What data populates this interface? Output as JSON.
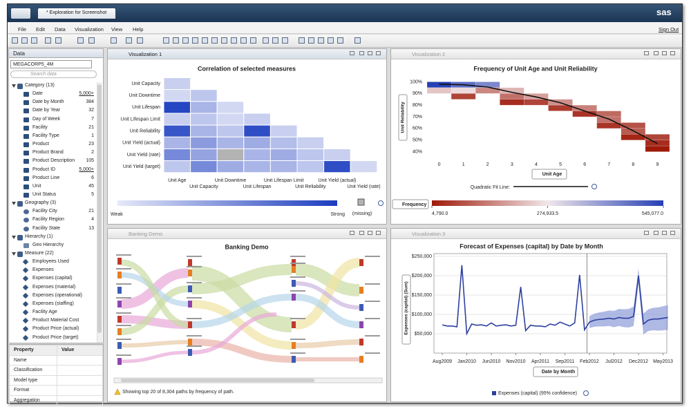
{
  "app": {
    "tab": "* Exploration for Screenshot",
    "logo": "sas",
    "menu": [
      "File",
      "Edit",
      "Data",
      "Visualization",
      "View",
      "Help"
    ],
    "sign_out": "Sign Out"
  },
  "data_panel": {
    "title": "Data",
    "source": "MEGACORP5_4M",
    "search": "Search data",
    "groups": [
      {
        "label": "Category (13)",
        "items": [
          {
            "label": "Date",
            "count": "5,000+"
          },
          {
            "label": "Date by Month",
            "count": "384"
          },
          {
            "label": "Date by Year",
            "count": "32"
          },
          {
            "label": "Day of Week",
            "count": "7"
          },
          {
            "label": "Facility",
            "count": "21"
          },
          {
            "label": "Facility Type",
            "count": "1"
          },
          {
            "label": "Product",
            "count": "23"
          },
          {
            "label": "Product Brand",
            "count": "2"
          },
          {
            "label": "Product Description",
            "count": "105"
          },
          {
            "label": "Product ID",
            "count": "5,000+"
          },
          {
            "label": "Product Line",
            "count": "6"
          },
          {
            "label": "Unit",
            "count": "45"
          },
          {
            "label": "Unit Status",
            "count": "5"
          }
        ]
      },
      {
        "label": "Geography (3)",
        "items": [
          {
            "label": "Facility City",
            "count": "21"
          },
          {
            "label": "Facility Region",
            "count": "4"
          },
          {
            "label": "Facility State",
            "count": "13"
          }
        ]
      },
      {
        "label": "Hierarchy (1)",
        "items": [
          {
            "label": "Geo Hierarchy"
          }
        ]
      },
      {
        "label": "Measure (22)",
        "items": [
          {
            "label": "Employees Used"
          },
          {
            "label": "Expenses"
          },
          {
            "label": "Expenses (capital)"
          },
          {
            "label": "Expenses (material)"
          },
          {
            "label": "Expenses (operational)"
          },
          {
            "label": "Expenses (staffing)"
          },
          {
            "label": "Facility Age"
          },
          {
            "label": "Product Material Cost"
          },
          {
            "label": "Product Price (actual)"
          },
          {
            "label": "Product Price (target)"
          }
        ]
      }
    ]
  },
  "properties": {
    "headers": [
      "Property",
      "Value"
    ],
    "rows": [
      "Name",
      "Classification",
      "Model type",
      "Format",
      "Aggregation"
    ]
  },
  "panels": [
    "Visualization 1",
    "Visualization 2",
    "Banking Demo",
    "Visualization 3"
  ],
  "chart_data": [
    {
      "type": "heatmap",
      "title": "Correlation of selected measures",
      "rows": [
        "Unit Capacity",
        "Unit Downtime",
        "Unit Lifespan",
        "Unit Lifespan Limit",
        "Unit Reliability",
        "Unit Yield (actual)",
        "Unit Yield (rate)",
        "Unit Yield (target)"
      ],
      "columns": [
        "Unit Age",
        "Unit Capacity",
        "Unit Downtime",
        "Unit Lifespan",
        "Unit Lifespan Limit",
        "Unit Reliability",
        "Unit Yield (actual)",
        "Unit Yield (rate)"
      ],
      "values": [
        [
          0.15
        ],
        [
          0.1,
          0.2
        ],
        [
          0.95,
          0.3,
          0.1
        ],
        [
          0.15,
          0.2,
          0.1,
          0.15
        ],
        [
          0.85,
          0.3,
          0.2,
          0.9,
          0.15
        ],
        [
          0.3,
          0.45,
          0.3,
          0.35,
          0.25,
          0.15
        ],
        [
          0.55,
          0.4,
          null,
          0.3,
          0.35,
          0.2,
          0.15
        ],
        [
          0.2,
          0.55,
          0.35,
          0.3,
          0.3,
          0.2,
          0.9,
          0.1
        ]
      ],
      "zlim": [
        0,
        1
      ],
      "legend": {
        "low": "Weak",
        "high": "Strong",
        "missing": "(missing)"
      },
      "color_low": "#e6e9f8",
      "color_high": "#1b3cbf",
      "color_missing": "#b3b3b3"
    },
    {
      "type": "binned_heatmap",
      "title": "Frequency of Unit Age and Unit Reliability",
      "x_label": "Unit Age",
      "y_label": "Unit Reliability",
      "xlim": [
        -0.5,
        9.5
      ],
      "xticks": [
        0,
        1,
        2,
        3,
        4,
        5,
        6,
        7,
        8,
        9
      ],
      "ylim": [
        35,
        105
      ],
      "yticks": [
        {
          "value": 40,
          "label": "40%"
        },
        {
          "value": 50,
          "label": "50%"
        },
        {
          "value": 60,
          "label": "60%"
        },
        {
          "value": 70,
          "label": "70%"
        },
        {
          "value": 80,
          "label": "80%"
        },
        {
          "value": 90,
          "label": "90%"
        },
        {
          "value": 100,
          "label": "100%"
        }
      ],
      "xbin": 1,
      "ybin": 5,
      "cells": {
        "x": [
          0,
          0,
          1,
          1,
          1,
          2,
          2,
          3,
          3,
          3,
          4,
          4,
          5,
          5,
          6,
          6,
          7,
          7,
          7,
          8,
          8,
          8,
          9,
          9,
          9
        ],
        "y": [
          95,
          90,
          95,
          90,
          85,
          95,
          90,
          90,
          85,
          80,
          85,
          80,
          80,
          75,
          75,
          70,
          70,
          65,
          60,
          60,
          55,
          50,
          50,
          45,
          40
        ],
        "values": [
          545077,
          230000,
          470000,
          260000,
          60000,
          430000,
          150000,
          210000,
          120000,
          30000,
          180000,
          60000,
          160000,
          50000,
          140000,
          40000,
          110000,
          120000,
          40000,
          80000,
          90000,
          20000,
          60000,
          30000,
          4790
        ]
      },
      "colorscale": {
        "name": "Frequency",
        "ticks": [
          {
            "value": 4790,
            "label": "4,790.0"
          },
          {
            "value": 274933.5,
            "label": "274,933.5"
          },
          {
            "value": 545077,
            "label": "545,077.0"
          }
        ],
        "colors": [
          "#9e1a0a",
          "#f1e7ea",
          "#2640b5"
        ]
      },
      "fit": {
        "name": "Quadratic Fit Line:",
        "x": [
          0,
          1,
          2,
          3,
          4,
          5,
          6,
          7,
          8,
          9
        ],
        "values": [
          98,
          97.5,
          95.5,
          91,
          87,
          82,
          75,
          68,
          58,
          47
        ],
        "color": "#111111"
      }
    },
    {
      "type": "sankey",
      "title": "Banking Demo",
      "note": "Showing top 20 of 8,304 paths by frequency of path."
    },
    {
      "type": "line",
      "title": "Forecast of Expenses (capital) by Date by Month",
      "x_label": "Date by Month",
      "y_label": "Expenses (capital) (Sum)",
      "categories": [
        "Aug2009",
        null,
        null,
        null,
        null,
        "Jan2010",
        null,
        null,
        null,
        null,
        "Jun2010",
        null,
        null,
        null,
        null,
        "Nov2010",
        null,
        null,
        null,
        null,
        "Apr2011",
        null,
        null,
        null,
        null,
        "Sep2011",
        null,
        null,
        null,
        null,
        "Feb2012",
        null,
        null,
        null,
        null,
        "Jul2012",
        null,
        null,
        null,
        null,
        "Dec2012",
        null,
        null,
        null,
        null,
        "May2013",
        null
      ],
      "series": [
        {
          "name": "Expenses (capital) (95% confidence)",
          "color": "#2d3f9e",
          "band_color": "#8c9bd8",
          "values": [
            73000,
            70000,
            70000,
            68000,
            227000,
            50000,
            75000,
            72000,
            73000,
            70000,
            78000,
            70000,
            72000,
            73000,
            70000,
            72000,
            171000,
            58000,
            72000,
            70000,
            70000,
            68000,
            75000,
            72000,
            80000,
            75000,
            70000,
            78000,
            202000,
            60000,
            80000,
            85000,
            87000,
            88000,
            90000,
            88000,
            92000,
            90000,
            90000,
            95000,
            200000,
            75000,
            85000,
            88000,
            88000,
            90000,
            92000
          ],
          "lower": [
            null,
            null,
            null,
            null,
            null,
            null,
            null,
            null,
            null,
            null,
            null,
            null,
            null,
            null,
            null,
            null,
            null,
            null,
            null,
            null,
            null,
            null,
            null,
            null,
            null,
            null,
            null,
            null,
            null,
            null,
            65000,
            68000,
            69000,
            69000,
            70000,
            67000,
            70000,
            67000,
            66000,
            70000,
            180000,
            48000,
            57000,
            59000,
            58000,
            59000,
            60000
          ],
          "upper": [
            null,
            null,
            null,
            null,
            null,
            null,
            null,
            null,
            null,
            null,
            null,
            null,
            null,
            null,
            null,
            null,
            null,
            null,
            null,
            null,
            null,
            null,
            null,
            null,
            null,
            null,
            null,
            null,
            null,
            null,
            95000,
            102000,
            105000,
            107000,
            110000,
            109000,
            114000,
            113000,
            114000,
            120000,
            218000,
            102000,
            113000,
            117000,
            118000,
            121000,
            124000
          ]
        }
      ],
      "ylim": [
        0,
        257000
      ],
      "yticks": [
        {
          "value": 50000,
          "label": "$50,000"
        },
        {
          "value": 100000,
          "label": "$100,000"
        },
        {
          "value": 150000,
          "label": "$150,000"
        },
        {
          "value": 200000,
          "label": "$200,000"
        },
        {
          "value": 250000,
          "label": "$250,000"
        }
      ],
      "grid": true
    }
  ]
}
